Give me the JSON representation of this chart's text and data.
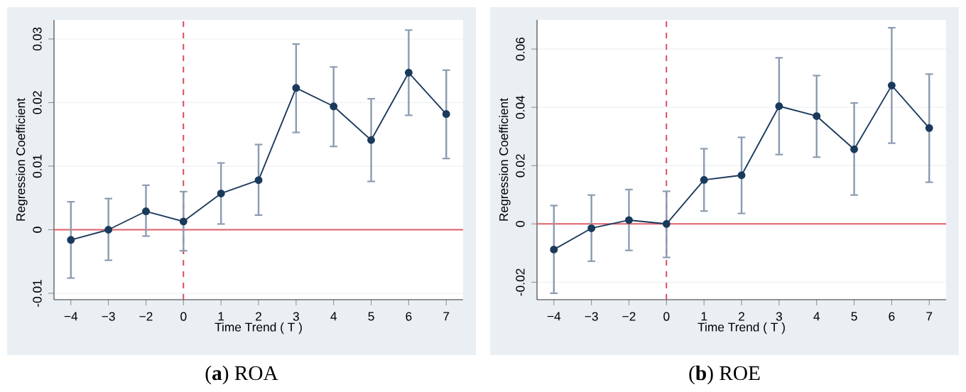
{
  "chart_data": [
    {
      "type": "line",
      "title": "(**a**) ROA",
      "xlabel": "Time Trend ( T )",
      "ylabel": "Regression Coefficient",
      "categories": [
        "−4",
        "−3",
        "−2",
        "0",
        "1",
        "2",
        "3",
        "4",
        "5",
        "6",
        "7"
      ],
      "series": [
        {
          "color": "#1a3a5c",
          "values": [
            -0.0016,
            0.0,
            0.0029,
            0.0013,
            0.0057,
            0.0078,
            0.0223,
            0.0194,
            0.0141,
            0.0247,
            0.0182
          ],
          "errors": [
            [
              -0.0076,
              0.0044
            ],
            [
              -0.0048,
              0.0049
            ],
            [
              -0.001,
              0.007
            ],
            [
              -0.0033,
              0.006
            ],
            [
              0.0009,
              0.0105
            ],
            [
              0.0023,
              0.0134
            ],
            [
              0.0153,
              0.0292
            ],
            [
              0.0131,
              0.0256
            ],
            [
              0.0076,
              0.0206
            ],
            [
              0.018,
              0.0314
            ],
            [
              0.0112,
              0.0251
            ]
          ]
        }
      ],
      "ylim": [
        -0.011,
        0.033
      ],
      "yticks": [
        -0.01,
        0,
        0.01,
        0.02,
        0.03
      ],
      "grid": "y",
      "marker": "circle",
      "ref_lines": [
        {
          "axis": "y",
          "value": 0,
          "color": "#e0606a",
          "line_style": "solid"
        },
        {
          "axis": "x",
          "value": "0",
          "color": "#d94a5a",
          "line_style": "dashed"
        }
      ]
    },
    {
      "type": "line",
      "title": "(**b**) ROE",
      "xlabel": "Time Trend ( T )",
      "ylabel": "Regression Coefficient",
      "categories": [
        "−4",
        "−3",
        "−2",
        "0",
        "1",
        "2",
        "3",
        "4",
        "5",
        "6",
        "7"
      ],
      "series": [
        {
          "color": "#1a3a5c",
          "values": [
            -0.0088,
            -0.0015,
            0.0013,
            0.0,
            0.0151,
            0.0167,
            0.0404,
            0.037,
            0.0256,
            0.0475,
            0.0329
          ],
          "errors": [
            [
              -0.0238,
              0.0063
            ],
            [
              -0.0128,
              0.0099
            ],
            [
              -0.0091,
              0.0118
            ],
            [
              -0.0115,
              0.0112
            ],
            [
              0.0044,
              0.0258
            ],
            [
              0.0036,
              0.0297
            ],
            [
              0.0238,
              0.057
            ],
            [
              0.0229,
              0.0509
            ],
            [
              0.0099,
              0.0415
            ],
            [
              0.0277,
              0.0673
            ],
            [
              0.0143,
              0.0514
            ]
          ]
        }
      ],
      "ylim": [
        -0.026,
        0.07
      ],
      "yticks": [
        -0.02,
        0,
        0.02,
        0.04,
        0.06
      ],
      "grid": "y",
      "marker": "circle",
      "ref_lines": [
        {
          "axis": "y",
          "value": 0,
          "color": "#e0606a",
          "line_style": "solid"
        },
        {
          "axis": "x",
          "value": "0",
          "color": "#d94a5a",
          "line_style": "dashed"
        }
      ]
    }
  ]
}
